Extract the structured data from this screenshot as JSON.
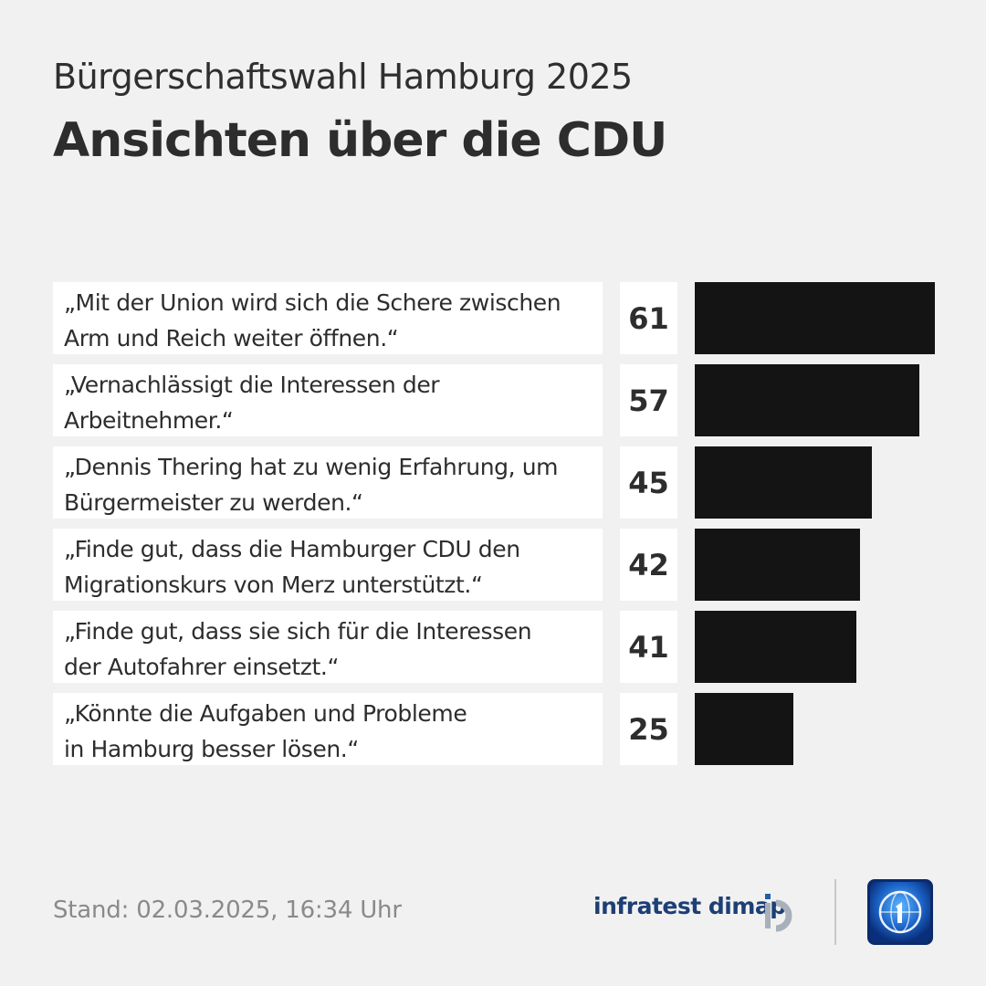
{
  "header": {
    "supertitle": "Bürgerschaftswahl Hamburg 2025",
    "title": "Ansichten über die CDU"
  },
  "chart_data": {
    "type": "bar",
    "orientation": "horizontal",
    "title": "Ansichten über die CDU",
    "subtitle": "Bürgerschaftswahl Hamburg 2025",
    "categories": [
      "„Mit der Union wird sich die Schere zwischen\nArm und Reich weiter öffnen.“",
      "„Vernachlässigt die Interessen der\nArbeitnehmer.“",
      "„Dennis Thering hat zu wenig Erfahrung, um\nBürgermeister zu werden.“",
      "„Finde gut, dass die Hamburger CDU den\nMigrationskurs von Merz unterstützt.“",
      "„Finde gut, dass sie sich für die Interessen\nder Autofahrer einsetzt.“",
      "„Könnte die Aufgaben und Probleme\nin Hamburg besser lösen.“"
    ],
    "values": [
      61,
      57,
      45,
      42,
      41,
      25
    ],
    "value_labels": [
      "61",
      "57",
      "45",
      "42",
      "41",
      "25"
    ],
    "bar_color": "#141414",
    "xlim": [
      0,
      61
    ],
    "grid": false,
    "legend": "none"
  },
  "footer": {
    "stand": "Stand:  02.03.2025, 16:34 Uhr",
    "brand": "infratest dimap",
    "brand_mark_icon": "infratest-dimap-logo-icon",
    "broadcaster_icon": "tagesschau-logo-icon"
  }
}
